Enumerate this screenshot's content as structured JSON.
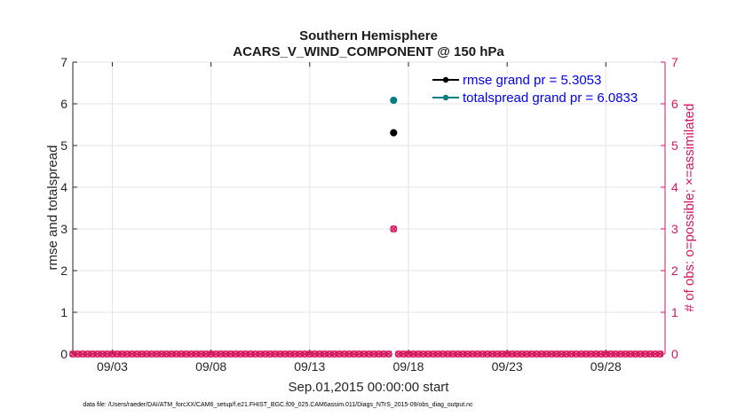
{
  "chart_data": {
    "type": "scatter",
    "title": [
      "Southern Hemisphere",
      "ACARS_V_WIND_COMPONENT @ 150 hPa"
    ],
    "xlabel": "Sep.01,2015 00:00:00 start",
    "ylabel_left": "rmse and totalspread",
    "ylabel_right": "# of obs: o=possible; ×=assimilated",
    "ylim_left": [
      0,
      7
    ],
    "ylim_right": [
      0,
      7
    ],
    "yticks_left": [
      "0",
      "1",
      "2",
      "3",
      "4",
      "5",
      "6",
      "7"
    ],
    "yticks_right": [
      "0",
      "1",
      "2",
      "3",
      "4",
      "5",
      "6",
      "7"
    ],
    "xlim": [
      1,
      31
    ],
    "xticks": [
      {
        "day": 3,
        "label": "09/03"
      },
      {
        "day": 8,
        "label": "09/08"
      },
      {
        "day": 13,
        "label": "09/13"
      },
      {
        "day": 18,
        "label": "09/18"
      },
      {
        "day": 23,
        "label": "09/23"
      },
      {
        "day": 28,
        "label": "09/28"
      }
    ],
    "grid": true,
    "legend_position": "top-right",
    "series": [
      {
        "name": "rmse grand pr = 5.3053",
        "color": "#000000",
        "axis": "left",
        "x": [
          17.25
        ],
        "y": [
          5.3053
        ]
      },
      {
        "name": "totalspread grand pr = 6.0833",
        "color": "#008080",
        "axis": "left",
        "x": [
          17.25
        ],
        "y": [
          6.0833
        ]
      }
    ],
    "obs_counts": {
      "color": "#d6165e",
      "axis": "right",
      "x_start": 1.0,
      "x_step": 0.25,
      "count": 120,
      "nonzero": [
        {
          "x": 17.25,
          "possible": 3,
          "assimilated": 3
        }
      ]
    }
  },
  "footer_text": "data file: /Users/raeder/DAI/ATM_forcXX/CAM6_setup/f.e21.FHIST_BGC.f09_025.CAM6assim.011/Diags_NTrS_2015-09/obs_diag_output.nc"
}
